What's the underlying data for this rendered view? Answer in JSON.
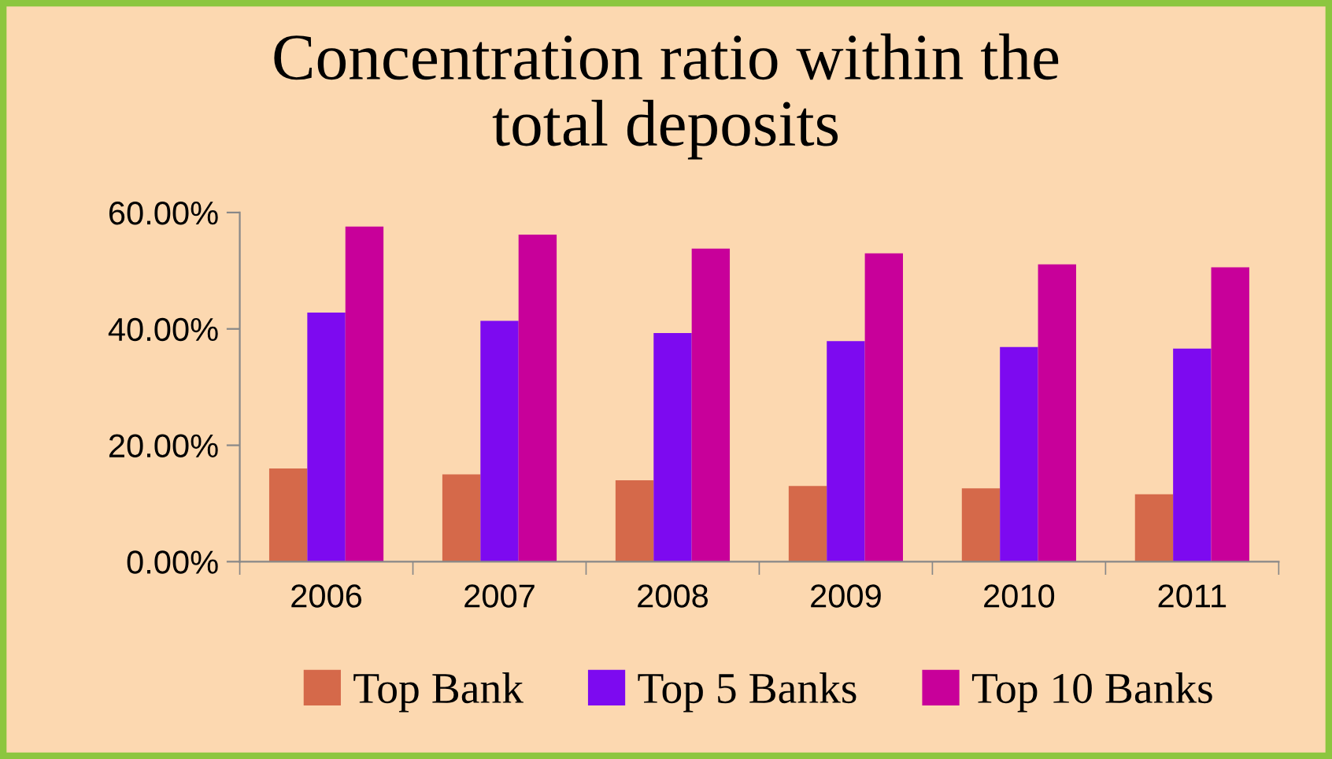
{
  "chart_data": {
    "type": "bar",
    "title": "Concentration ratio within the\ntotal deposits",
    "categories": [
      "2006",
      "2007",
      "2008",
      "2009",
      "2010",
      "2011"
    ],
    "series": [
      {
        "name": "Top Bank",
        "color": "#d5694a",
        "values": [
          16,
          15,
          14,
          13,
          12.6,
          11.6
        ]
      },
      {
        "name": "Top 5 Banks",
        "color": "#7d0af0",
        "values": [
          42.8,
          41.4,
          39.3,
          37.9,
          36.9,
          36.6
        ]
      },
      {
        "name": "Top 10 Banks",
        "color": "#c8009a",
        "values": [
          57.6,
          56.2,
          53.8,
          53,
          51.1,
          50.6
        ]
      }
    ],
    "ylim": [
      0,
      60
    ],
    "yticks": [
      {
        "value": 0,
        "label": "0.00%"
      },
      {
        "value": 20,
        "label": "20.00%"
      },
      {
        "value": 40,
        "label": "40.00%"
      },
      {
        "value": 60,
        "label": "60.00%"
      }
    ],
    "grid": false,
    "legend": "bottom"
  }
}
